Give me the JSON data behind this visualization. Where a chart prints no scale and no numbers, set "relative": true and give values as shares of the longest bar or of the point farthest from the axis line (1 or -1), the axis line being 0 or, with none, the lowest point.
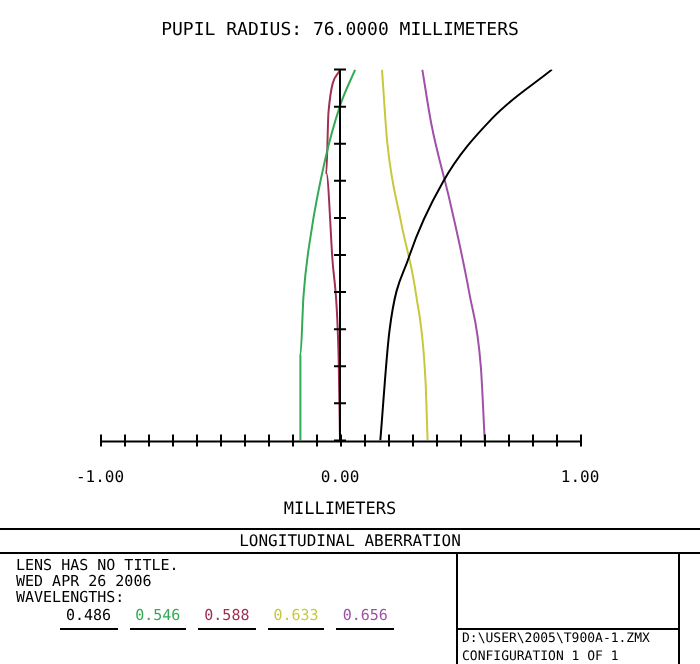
{
  "chart_data": {
    "type": "line",
    "title": "PUPIL RADIUS: 76.0000 MILLIMETERS",
    "xlabel": "MILLIMETERS",
    "relative": true,
    "marker": "none",
    "line_style": "solid",
    "legend": "bottom left",
    "legend_title": "WAVELENGTHS:",
    "xlim": [
      -1,
      1
    ],
    "xticks": [
      {
        "value": -1,
        "label": "-1.00"
      },
      {
        "value": -0.9,
        "label": null
      },
      {
        "value": -0.8,
        "label": null
      },
      {
        "value": -0.7,
        "label": null
      },
      {
        "value": -0.6,
        "label": null
      },
      {
        "value": -0.5,
        "label": null
      },
      {
        "value": -0.4,
        "label": null
      },
      {
        "value": -0.3,
        "label": null
      },
      {
        "value": -0.2,
        "label": null
      },
      {
        "value": -0.1,
        "label": null
      },
      {
        "value": 0,
        "label": "0.00"
      },
      {
        "value": 0.1,
        "label": null
      },
      {
        "value": 0.2,
        "label": null
      },
      {
        "value": 0.3,
        "label": null
      },
      {
        "value": 0.4,
        "label": null
      },
      {
        "value": 0.5,
        "label": null
      },
      {
        "value": 0.6,
        "label": null
      },
      {
        "value": 0.7,
        "label": null
      },
      {
        "value": 0.8,
        "label": null
      },
      {
        "value": 0.9,
        "label": null
      },
      {
        "value": 1,
        "label": "1.00"
      }
    ],
    "ref_lines": [
      {
        "axis": "x",
        "value": 0,
        "color": "#000000"
      }
    ],
    "series": [
      {
        "name": "0.486",
        "color": "#000000",
        "x": [
          0.168,
          0.206,
          0.286,
          0.429,
          0.635,
          0.883
        ],
        "values": [
          0,
          0.295,
          0.492,
          0.697,
          0.869,
          1
        ]
      },
      {
        "name": "0.546",
        "color": "#33aa55",
        "x": [
          -0.165,
          -0.165,
          -0.152,
          -0.121,
          -0.063,
          0,
          0.063
        ],
        "values": [
          0,
          0.23,
          0.39,
          0.557,
          0.754,
          0.902,
          1
        ]
      },
      {
        "name": "0.588",
        "color": "#a03050",
        "x": [
          0,
          -0.006,
          -0.032,
          -0.057,
          -0.048,
          0
        ],
        "values": [
          0,
          0.23,
          0.492,
          0.721,
          0.885,
          1
        ]
      },
      {
        "name": "0.633",
        "color": "#c8c83c",
        "x": [
          0.365,
          0.356,
          0.317,
          0.254,
          0.197,
          0.175
        ],
        "values": [
          0,
          0.164,
          0.393,
          0.59,
          0.803,
          1
        ]
      },
      {
        "name": "0.656",
        "color": "#a050a8",
        "x": [
          0.603,
          0.587,
          0.54,
          0.46,
          0.381,
          0.343
        ],
        "values": [
          0,
          0.197,
          0.393,
          0.639,
          0.852,
          1
        ]
      }
    ],
    "annotations": [
      "LONGITUDINAL ABERRATION",
      "LENS HAS NO TITLE.",
      "WED APR 26 2006",
      "D:\\USER\\2005\\T900A-1.ZMX",
      "CONFIGURATION 1 OF 1"
    ]
  }
}
